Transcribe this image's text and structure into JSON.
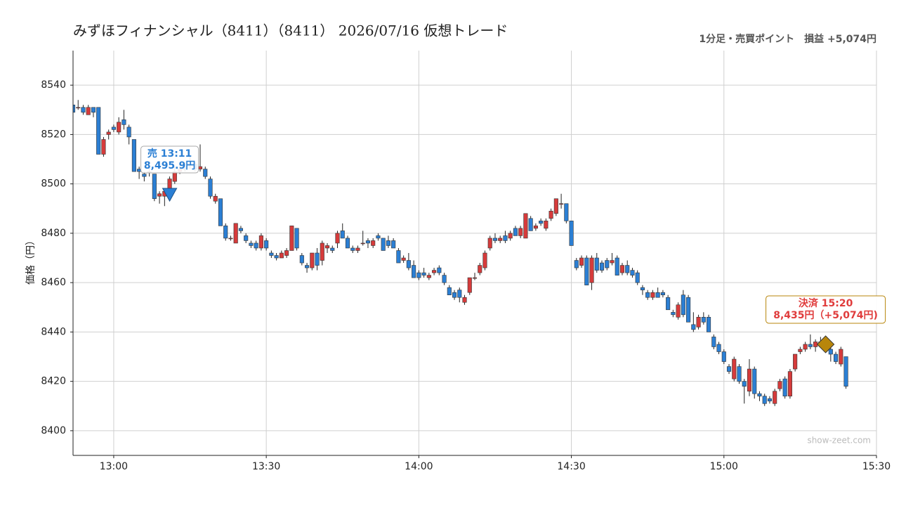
{
  "chart_data": {
    "type": "candlestick",
    "title": "みずほフィナンシャル（8411）（8411） 2026/07/16 仮想トレード",
    "subtitle": "1分足・売買ポイント　損益 +5,074円",
    "y_label": "価格（円）",
    "watermark": "show-zeet.com",
    "up_color": "#d63b3b",
    "down_color": "#2b7fd4",
    "grid": true,
    "xlim": [
      "12:52",
      "15:30"
    ],
    "xticks": [
      "13:00",
      "13:30",
      "14:00",
      "14:30",
      "15:00",
      "15:30"
    ],
    "ylim": [
      8390,
      8554
    ],
    "yticks": [
      8400,
      8420,
      8440,
      8460,
      8480,
      8500,
      8520,
      8540
    ],
    "x": [
      "12:52",
      "12:53",
      "12:54",
      "12:55",
      "12:56",
      "12:57",
      "12:58",
      "12:59",
      "13:00",
      "13:01",
      "13:02",
      "13:03",
      "13:04",
      "13:05",
      "13:06",
      "13:07",
      "13:08",
      "13:09",
      "13:10",
      "13:11",
      "13:12",
      "13:13",
      "13:14",
      "13:15",
      "13:16",
      "13:17",
      "13:18",
      "13:19",
      "13:20",
      "13:21",
      "13:22",
      "13:23",
      "13:24",
      "13:25",
      "13:26",
      "13:27",
      "13:28",
      "13:29",
      "13:30",
      "13:31",
      "13:32",
      "13:33",
      "13:34",
      "13:35",
      "13:36",
      "13:37",
      "13:38",
      "13:39",
      "13:40",
      "13:41",
      "13:42",
      "13:43",
      "13:44",
      "13:45",
      "13:46",
      "13:47",
      "13:48",
      "13:49",
      "13:50",
      "13:51",
      "13:52",
      "13:53",
      "13:54",
      "13:55",
      "13:56",
      "13:57",
      "13:58",
      "13:59",
      "14:00",
      "14:01",
      "14:02",
      "14:03",
      "14:04",
      "14:05",
      "14:06",
      "14:07",
      "14:08",
      "14:09",
      "14:10",
      "14:11",
      "14:12",
      "14:13",
      "14:14",
      "14:15",
      "14:16",
      "14:17",
      "14:18",
      "14:19",
      "14:20",
      "14:21",
      "14:22",
      "14:23",
      "14:24",
      "14:25",
      "14:26",
      "14:27",
      "14:28",
      "14:29",
      "14:30",
      "14:31",
      "14:32",
      "14:33",
      "14:34",
      "14:35",
      "14:36",
      "14:37",
      "14:38",
      "14:39",
      "14:40",
      "14:41",
      "14:42",
      "14:43",
      "14:44",
      "14:45",
      "14:46",
      "14:47",
      "14:48",
      "14:49",
      "14:50",
      "14:51",
      "14:52",
      "14:53",
      "14:54",
      "14:55",
      "14:56",
      "14:57",
      "14:58",
      "14:59",
      "15:00",
      "15:01",
      "15:02",
      "15:03",
      "15:04",
      "15:05",
      "15:06",
      "15:07",
      "15:08",
      "15:09",
      "15:10",
      "15:11",
      "15:12",
      "15:13",
      "15:14",
      "15:15",
      "15:16",
      "15:17",
      "15:18",
      "15:19",
      "15:20",
      "15:21",
      "15:22",
      "15:23",
      "15:24"
    ],
    "ohlc": [
      [
        8532,
        8533,
        8528,
        8529
      ],
      [
        8531,
        8534,
        8530,
        8531
      ],
      [
        8531,
        8532,
        8528,
        8529
      ],
      [
        8528,
        8532,
        8528,
        8531
      ],
      [
        8531,
        8531,
        8527,
        8529
      ],
      [
        8531,
        8531,
        8512,
        8512
      ],
      [
        8512,
        8519,
        8511,
        8518
      ],
      [
        8520,
        8522,
        8518,
        8521
      ],
      [
        8523,
        8524,
        8521,
        8522
      ],
      [
        8521,
        8527,
        8520,
        8525
      ],
      [
        8526,
        8530,
        8522,
        8524
      ],
      [
        8523,
        8524,
        8516,
        8519
      ],
      [
        8518,
        8518,
        8505,
        8505
      ],
      [
        8506,
        8507,
        8502,
        8505
      ],
      [
        8504,
        8505,
        8501,
        8503
      ],
      [
        8505,
        8507,
        8503,
        8505
      ],
      [
        8504,
        8504,
        8493,
        8494
      ],
      [
        8495,
        8497,
        8492,
        8496
      ],
      [
        8495,
        8498,
        8491,
        8497
      ],
      [
        8498,
        8503,
        8497,
        8502
      ],
      [
        8501,
        8507,
        8500,
        8505
      ],
      [
        8505,
        8508,
        8504,
        8506
      ],
      [
        8507,
        8509,
        8505,
        8506
      ],
      [
        8508,
        8511,
        8506,
        8508
      ],
      [
        8508,
        8509,
        8505,
        8506
      ],
      [
        8506,
        8516,
        8505,
        8507
      ],
      [
        8506,
        8507,
        8502,
        8503
      ],
      [
        8502,
        8503,
        8494,
        8495
      ],
      [
        8493,
        8496,
        8492,
        8495
      ],
      [
        8494,
        8494,
        8483,
        8483
      ],
      [
        8483,
        8484,
        8477,
        8478
      ],
      [
        8478,
        8479,
        8477,
        8478
      ],
      [
        8476,
        8484,
        8476,
        8484
      ],
      [
        8482,
        8483,
        8480,
        8481
      ],
      [
        8479,
        8480,
        8476,
        8477
      ],
      [
        8476,
        8477,
        8474,
        8475
      ],
      [
        8476,
        8477,
        8473,
        8474
      ],
      [
        8474,
        8480,
        8473,
        8479
      ],
      [
        8477,
        8478,
        8473,
        8474
      ],
      [
        8472,
        8473,
        8470,
        8471
      ],
      [
        8471,
        8472,
        8469,
        8470
      ],
      [
        8470,
        8473,
        8470,
        8472
      ],
      [
        8471,
        8474,
        8470,
        8473
      ],
      [
        8473,
        8483,
        8473,
        8483
      ],
      [
        8482,
        8482,
        8473,
        8474
      ],
      [
        8471,
        8472,
        8467,
        8468
      ],
      [
        8467,
        8468,
        8464,
        8466
      ],
      [
        8466,
        8472,
        8465,
        8472
      ],
      [
        8472,
        8474,
        8465,
        8467
      ],
      [
        8469,
        8477,
        8467,
        8476
      ],
      [
        8474,
        8476,
        8472,
        8475
      ],
      [
        8474,
        8475,
        8472,
        8473
      ],
      [
        8476,
        8481,
        8474,
        8480
      ],
      [
        8481,
        8484,
        8478,
        8478
      ],
      [
        8478,
        8479,
        8474,
        8474
      ],
      [
        8474,
        8475,
        8472,
        8473
      ],
      [
        8473,
        8475,
        8472,
        8474
      ],
      [
        8476,
        8481,
        8475,
        8476
      ],
      [
        8477,
        8478,
        8474,
        8476
      ],
      [
        8475,
        8478,
        8474,
        8477
      ],
      [
        8479,
        8480,
        8477,
        8478
      ],
      [
        8478,
        8478,
        8473,
        8473
      ],
      [
        8477,
        8479,
        8474,
        8475
      ],
      [
        8477,
        8478,
        8474,
        8474
      ],
      [
        8473,
        8474,
        8468,
        8468
      ],
      [
        8469,
        8471,
        8468,
        8470
      ],
      [
        8469,
        8472,
        8465,
        8466
      ],
      [
        8467,
        8469,
        8462,
        8462
      ],
      [
        8464,
        8465,
        8461,
        8462
      ],
      [
        8464,
        8466,
        8462,
        8463
      ],
      [
        8462,
        8464,
        8461,
        8463
      ],
      [
        8464,
        8466,
        8463,
        8465
      ],
      [
        8466,
        8467,
        8463,
        8464
      ],
      [
        8463,
        8464,
        8459,
        8460
      ],
      [
        8458,
        8459,
        8455,
        8455
      ],
      [
        8456,
        8457,
        8453,
        8454
      ],
      [
        8457,
        8458,
        8452,
        8454
      ],
      [
        8452,
        8455,
        8451,
        8454
      ],
      [
        8456,
        8462,
        8455,
        8462
      ],
      [
        8462,
        8464,
        8461,
        8462
      ],
      [
        8464,
        8468,
        8463,
        8467
      ],
      [
        8466,
        8473,
        8465,
        8472
      ],
      [
        8474,
        8479,
        8473,
        8478
      ],
      [
        8478,
        8480,
        8476,
        8477
      ],
      [
        8477,
        8479,
        8476,
        8478
      ],
      [
        8479,
        8481,
        8476,
        8477
      ],
      [
        8478,
        8481,
        8477,
        8480
      ],
      [
        8482,
        8483,
        8479,
        8479
      ],
      [
        8479,
        8483,
        8478,
        8482
      ],
      [
        8478,
        8488,
        8478,
        8488
      ],
      [
        8486,
        8487,
        8481,
        8481
      ],
      [
        8482,
        8484,
        8481,
        8483
      ],
      [
        8485,
        8486,
        8483,
        8484
      ],
      [
        8482,
        8486,
        8481,
        8485
      ],
      [
        8486,
        8490,
        8485,
        8489
      ],
      [
        8488,
        8494,
        8487,
        8494
      ],
      [
        8492,
        8496,
        8490,
        8492
      ],
      [
        8492,
        8492,
        8484,
        8485
      ],
      [
        8485,
        8485,
        8475,
        8475
      ],
      [
        8469,
        8470,
        8465,
        8466
      ],
      [
        8467,
        8471,
        8466,
        8470
      ],
      [
        8470,
        8471,
        8459,
        8459
      ],
      [
        8460,
        8471,
        8457,
        8470
      ],
      [
        8470,
        8472,
        8464,
        8465
      ],
      [
        8468,
        8469,
        8464,
        8465
      ],
      [
        8469,
        8470,
        8465,
        8466
      ],
      [
        8468,
        8472,
        8467,
        8469
      ],
      [
        8470,
        8471,
        8463,
        8463
      ],
      [
        8464,
        8468,
        8463,
        8467
      ],
      [
        8467,
        8469,
        8463,
        8464
      ],
      [
        8465,
        8466,
        8462,
        8463
      ],
      [
        8464,
        8465,
        8459,
        8460
      ],
      [
        8458,
        8459,
        8455,
        8457
      ],
      [
        8456,
        8457,
        8453,
        8454
      ],
      [
        8454,
        8457,
        8453,
        8456
      ],
      [
        8456,
        8458,
        8454,
        8454
      ],
      [
        8456,
        8457,
        8454,
        8455
      ],
      [
        8454,
        8455,
        8449,
        8449
      ],
      [
        8448,
        8449,
        8446,
        8447
      ],
      [
        8446,
        8452,
        8445,
        8451
      ],
      [
        8455,
        8457,
        8446,
        8447
      ],
      [
        8454,
        8455,
        8444,
        8444
      ],
      [
        8443,
        8448,
        8440,
        8441
      ],
      [
        8442,
        8447,
        8441,
        8446
      ],
      [
        8446,
        8448,
        8443,
        8444
      ],
      [
        8446,
        8447,
        8440,
        8440
      ],
      [
        8438,
        8439,
        8433,
        8434
      ],
      [
        8435,
        8436,
        8431,
        8432
      ],
      [
        8432,
        8433,
        8427,
        8428
      ],
      [
        8426,
        8427,
        8423,
        8424
      ],
      [
        8421,
        8430,
        8420,
        8429
      ],
      [
        8426,
        8427,
        8419,
        8420
      ],
      [
        8420,
        8421,
        8411,
        8418
      ],
      [
        8416,
        8429,
        8414,
        8425
      ],
      [
        8425,
        8426,
        8413,
        8415
      ],
      [
        8415,
        8416,
        8412,
        8414
      ],
      [
        8414,
        8415,
        8410,
        8411
      ],
      [
        8413,
        8414,
        8411,
        8412
      ],
      [
        8411,
        8417,
        8410,
        8416
      ],
      [
        8417,
        8421,
        8416,
        8420
      ],
      [
        8421,
        8422,
        8413,
        8414
      ],
      [
        8414,
        8425,
        8413,
        8424
      ],
      [
        8425,
        8431,
        8424,
        8431
      ],
      [
        8432,
        8434,
        8431,
        8433
      ],
      [
        8433,
        8436,
        8432,
        8435
      ],
      [
        8435,
        8439,
        8433,
        8434
      ],
      [
        8434,
        8437,
        8432,
        8436
      ],
      [
        8436,
        8438,
        8434,
        8435
      ],
      [
        8435,
        8436,
        8433,
        8434
      ],
      [
        8433,
        8434,
        8428,
        8431
      ],
      [
        8431,
        8432,
        8427,
        8428
      ],
      [
        8427,
        8434,
        8426,
        8433
      ],
      [
        8430,
        8430,
        8417,
        8418
      ]
    ],
    "annotations": [
      {
        "time": "13:11",
        "price": 8495.9,
        "label": "売 13:11",
        "price_label": "8,495.9円",
        "color": "#2b7fd4",
        "marker": "triangle"
      },
      {
        "time": "15:20",
        "price": 8435,
        "label": "決済 15:20",
        "price_label": "8,435円（+5,074円)",
        "color": "#e03c3c",
        "marker_color": "#b8860b",
        "marker": "diamond"
      }
    ]
  }
}
